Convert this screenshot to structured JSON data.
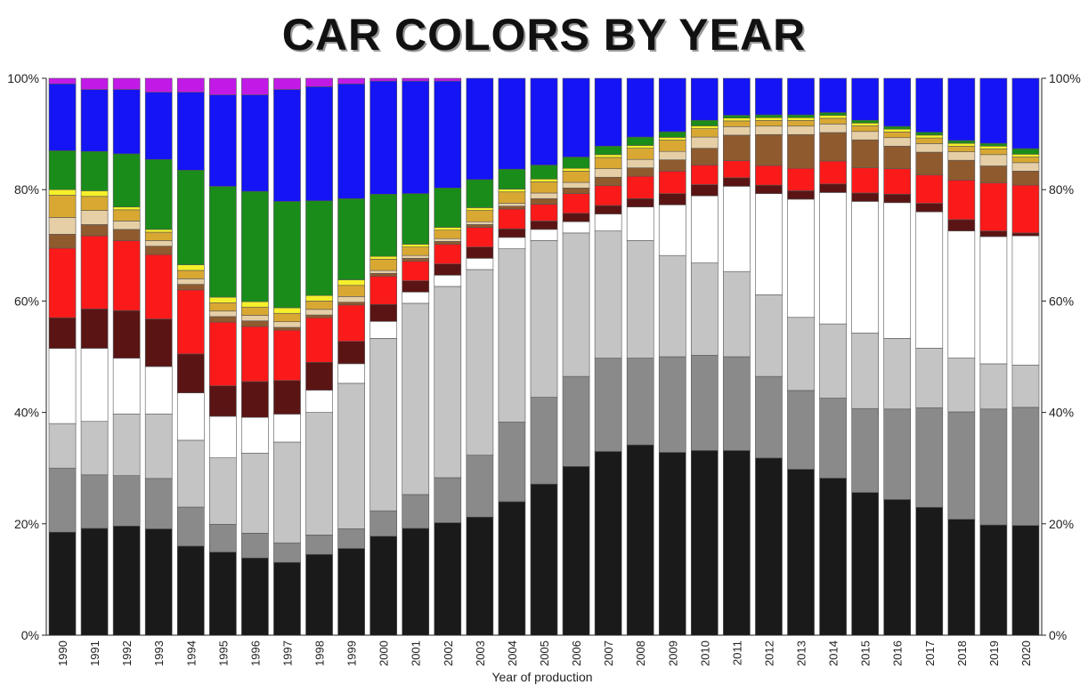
{
  "chart_data": {
    "type": "bar",
    "stacked": true,
    "title": "CAR COLORS BY YEAR",
    "xlabel": "Year of production",
    "ylabel": "",
    "ylim": [
      0,
      100
    ],
    "yticks": [
      "0%",
      "20%",
      "40%",
      "60%",
      "80%",
      "100%"
    ],
    "ytick_values": [
      0,
      20,
      40,
      60,
      80,
      100
    ],
    "categories": [
      "1990",
      "1991",
      "1992",
      "1993",
      "1994",
      "1995",
      "1996",
      "1997",
      "1998",
      "1999",
      "2000",
      "2001",
      "2002",
      "2003",
      "2004",
      "2005",
      "2006",
      "2007",
      "2008",
      "2009",
      "2010",
      "2011",
      "2012",
      "2013",
      "2014",
      "2015",
      "2016",
      "2017",
      "2018",
      "2019",
      "2020"
    ],
    "series": [
      {
        "name": "Black",
        "color": "#1a1a1a",
        "values": [
          18.5,
          19,
          19.5,
          19,
          16,
          15,
          14,
          13,
          14.5,
          15.5,
          17.5,
          19,
          20,
          21,
          23.5,
          27,
          30,
          32.5,
          34,
          32.5,
          33,
          32.5,
          31.5,
          29.5,
          27.5,
          25.5,
          24,
          22.5,
          20.5,
          19.5,
          19.5
        ]
      },
      {
        "name": "Gray",
        "color": "#8a8a8a",
        "values": [
          11.5,
          9.5,
          9,
          9,
          7,
          5,
          4.5,
          3.5,
          3.5,
          3.5,
          4.5,
          6,
          8,
          11,
          14,
          15.5,
          16,
          16.5,
          15.5,
          17,
          17,
          16.5,
          14.5,
          14,
          14,
          15,
          16,
          17.5,
          19,
          20.5,
          21
        ]
      },
      {
        "name": "Silver",
        "color": "#c4c4c4",
        "values": [
          8,
          9.5,
          11,
          11.5,
          12,
          12,
          14.5,
          18,
          22,
          26,
          30.5,
          34,
          34,
          33,
          30.5,
          28,
          25.5,
          22.5,
          21,
          18,
          16.5,
          15,
          14.5,
          13,
          13,
          13.5,
          12.5,
          10.5,
          9.5,
          8,
          7.5
        ]
      },
      {
        "name": "White",
        "color": "#ffffff",
        "values": [
          13.5,
          13,
          10,
          8.5,
          8.5,
          7.5,
          6.5,
          5,
          4,
          3.5,
          3,
          2,
          2,
          2,
          2,
          2,
          2,
          3,
          6,
          9,
          12,
          15,
          18,
          21,
          23,
          23.5,
          24,
          24,
          22.5,
          22.5,
          23
        ]
      },
      {
        "name": "Maroon",
        "color": "#5a1414",
        "values": [
          5.5,
          7,
          8.5,
          8.5,
          7,
          5.5,
          6.5,
          6,
          5,
          4,
          3,
          2,
          2,
          2,
          1.5,
          1.5,
          1.5,
          1.5,
          1.5,
          2,
          2,
          1.5,
          1.5,
          1.5,
          1.5,
          1.5,
          1.5,
          1.5,
          2,
          1,
          0.5
        ]
      },
      {
        "name": "Red",
        "color": "#fa1a1a",
        "values": [
          12.5,
          13,
          12.5,
          11.5,
          11.5,
          11.5,
          10,
          9,
          8,
          6.5,
          5,
          3.5,
          3.5,
          3.5,
          3.5,
          3,
          3.5,
          3.5,
          4,
          4,
          3.5,
          3,
          3.5,
          4,
          4,
          4.5,
          4.5,
          5,
          7,
          8.5,
          8.5
        ]
      },
      {
        "name": "Brown",
        "color": "#8f5b2e",
        "values": [
          2.5,
          2,
          2,
          1.5,
          1,
          1,
          1,
          0.5,
          0.5,
          0.5,
          0.5,
          0.5,
          0.5,
          0.5,
          0.5,
          1,
          1,
          1.5,
          1.5,
          2,
          3,
          4.5,
          5.5,
          6,
          5,
          5,
          4,
          4,
          3.5,
          3,
          2.5
        ]
      },
      {
        "name": "Beige",
        "color": "#e6cfa6",
        "values": [
          3,
          2.5,
          1.5,
          1,
          1,
          1,
          1,
          1,
          1,
          1,
          0.5,
          0.5,
          0.5,
          0.5,
          0.5,
          1,
          1,
          1.5,
          1.5,
          1.5,
          2,
          1.5,
          1.5,
          1.5,
          1.5,
          1.5,
          1.5,
          1.5,
          1.5,
          2,
          1.5
        ]
      },
      {
        "name": "Gold",
        "color": "#d9a832",
        "values": [
          4,
          2.5,
          2,
          1.5,
          1.5,
          1.5,
          1.5,
          1.5,
          1.5,
          2,
          2,
          1.5,
          1.5,
          2,
          2,
          2,
          2,
          2,
          2,
          2,
          1.5,
          1,
          1,
          1,
          1,
          1,
          1,
          1,
          1,
          1,
          1
        ]
      },
      {
        "name": "Yellow",
        "color": "#f5f02a",
        "values": [
          1,
          1,
          0.5,
          0.5,
          1,
          1,
          1,
          1,
          1,
          1,
          0.5,
          0.5,
          0.5,
          0.5,
          0.5,
          0.5,
          0.5,
          0.5,
          0.5,
          0.5,
          0.5,
          0.5,
          0.5,
          0.5,
          0.5,
          0.5,
          0.5,
          0.5,
          0.5,
          0.5,
          0.5
        ]
      },
      {
        "name": "Green",
        "color": "#1a8c1a",
        "values": [
          7,
          7,
          9.5,
          12.5,
          17,
          20,
          20,
          19,
          17,
          14.5,
          11,
          9,
          7,
          5,
          3.5,
          2.5,
          2,
          1.5,
          1.5,
          1,
          1,
          0.5,
          0.5,
          0.5,
          0.5,
          0.5,
          0.5,
          0.5,
          0.5,
          0.5,
          1
        ]
      },
      {
        "name": "Blue",
        "color": "#1414f5",
        "values": [
          12,
          11,
          11.5,
          12,
          14,
          16.5,
          17.5,
          20,
          20.5,
          20.5,
          20,
          20,
          19,
          18,
          16,
          15.5,
          14,
          12,
          10.5,
          9.5,
          7.5,
          6.5,
          6.5,
          6.5,
          6,
          7.5,
          8.5,
          9.5,
          11,
          11.5,
          12.5
        ]
      },
      {
        "name": "Purple",
        "color": "#c21ae6",
        "values": [
          1,
          2,
          2,
          2.5,
          2.5,
          3,
          3,
          2,
          1.5,
          1,
          0.5,
          0.5,
          0.5,
          0,
          0,
          0,
          0,
          0,
          0,
          0,
          0,
          0,
          0,
          0,
          0,
          0,
          0,
          0,
          0,
          0,
          0
        ]
      }
    ]
  }
}
